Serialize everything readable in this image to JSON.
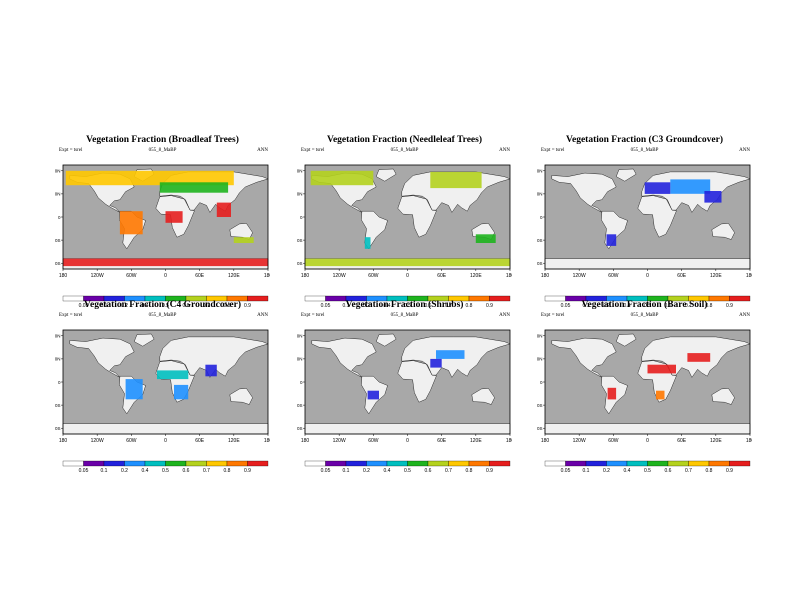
{
  "lon_ticks": [
    "180",
    "120W",
    "60W",
    "0",
    "60E",
    "120E",
    "180"
  ],
  "lat_ticks": [
    "80N",
    "40N",
    "0",
    "40S",
    "80S"
  ],
  "colorbar": {
    "labels": [
      "0.05",
      "0.1",
      "0.2",
      "0.4",
      "0.5",
      "0.6",
      "0.7",
      "0.8",
      "0.9"
    ],
    "colors": [
      "#ffffff",
      "#6a00a8",
      "#2222dd",
      "#1e90ff",
      "#00bfbf",
      "#1eb41e",
      "#b4d21e",
      "#ffc800",
      "#ff7800",
      "#e61e1e"
    ]
  },
  "colors": {
    "ocean": "#a8a8a8",
    "land": "#f0f0f0"
  },
  "panels": [
    {
      "title": "Vegetation Fraction (Broadleaf Trees)",
      "expt": "Expt = tsrel",
      "case": "055_8_MaBP",
      "season": "ANN"
    },
    {
      "title": "Vegetation Fraction (Needleleaf Trees)",
      "expt": "Expt = tsrel",
      "case": "055_8_MaBP",
      "season": "ANN"
    },
    {
      "title": "Vegetation Fraction (C3 Groundcover)",
      "expt": "Expt = tsrel",
      "case": "055_8_MaBP",
      "season": "ANN"
    },
    {
      "title": "Vegetation Fraction (C4 Groundcover)",
      "expt": "Expt = tsrel",
      "case": "055_8_MaBP",
      "season": "ANN"
    },
    {
      "title": "Vegetation Fraction (Shrubs)",
      "expt": "Expt = tsrel",
      "case": "055_8_MaBP",
      "season": "ANN"
    },
    {
      "title": "Vegetation Fraction (Bare Soil)",
      "expt": "Expt = tsrel",
      "case": "055_8_MaBP",
      "season": "ANN"
    }
  ],
  "chart_data": [
    {
      "type": "heatmap",
      "title": "Vegetation Fraction (Broadleaf Trees)",
      "subtitle": "055_8_MaBP",
      "xlabel": "",
      "ylabel": "",
      "x_ticks": [
        "180",
        "120W",
        "60W",
        "0",
        "60E",
        "120E",
        "180"
      ],
      "y_ticks": [
        "80N",
        "40N",
        "0",
        "40S",
        "80S"
      ],
      "color_levels": [
        0.05,
        0.1,
        0.2,
        0.4,
        0.5,
        0.6,
        0.7,
        0.8,
        0.9
      ],
      "regions": [
        {
          "name": "high-latitude northern band",
          "lon": [
            -175,
            120
          ],
          "lat": [
            55,
            80
          ],
          "value": 0.7
        },
        {
          "name": "central Eurasian band",
          "lon": [
            -10,
            110
          ],
          "lat": [
            42,
            60
          ],
          "value": 0.5
        },
        {
          "name": "South America tropics",
          "lon": [
            -80,
            -40
          ],
          "lat": [
            -30,
            10
          ],
          "value": 0.8
        },
        {
          "name": "Central Africa",
          "lon": [
            0,
            30
          ],
          "lat": [
            -10,
            10
          ],
          "value": 0.9
        },
        {
          "name": "Southeast Asia",
          "lon": [
            90,
            115
          ],
          "lat": [
            0,
            25
          ],
          "value": 0.9
        },
        {
          "name": "Antarctica coast",
          "lon": [
            -180,
            180
          ],
          "lat": [
            -85,
            -72
          ],
          "value": 0.9
        },
        {
          "name": "southern Australia",
          "lon": [
            120,
            155
          ],
          "lat": [
            -45,
            -35
          ],
          "value": 0.6
        }
      ]
    },
    {
      "type": "heatmap",
      "title": "Vegetation Fraction (Needleleaf Trees)",
      "subtitle": "055_8_MaBP",
      "xlabel": "",
      "ylabel": "",
      "x_ticks": [
        "180",
        "120W",
        "60W",
        "0",
        "60E",
        "120E",
        "180"
      ],
      "y_ticks": [
        "80N",
        "40N",
        "0",
        "40S",
        "80S"
      ],
      "color_levels": [
        0.05,
        0.1,
        0.2,
        0.4,
        0.5,
        0.6,
        0.7,
        0.8,
        0.9
      ],
      "regions": [
        {
          "name": "North America boreal",
          "lon": [
            -170,
            -60
          ],
          "lat": [
            55,
            80
          ],
          "value": 0.6
        },
        {
          "name": "Eurasia boreal",
          "lon": [
            40,
            130
          ],
          "lat": [
            50,
            78
          ],
          "value": 0.6
        },
        {
          "name": "southern South America",
          "lon": [
            -75,
            -65
          ],
          "lat": [
            -55,
            -35
          ],
          "value": 0.4
        },
        {
          "name": "Australia east",
          "lon": [
            120,
            155
          ],
          "lat": [
            -45,
            -30
          ],
          "value": 0.5
        },
        {
          "name": "Antarctica coast",
          "lon": [
            -180,
            180
          ],
          "lat": [
            -85,
            -72
          ],
          "value": 0.6
        }
      ]
    },
    {
      "type": "heatmap",
      "title": "Vegetation Fraction (C3 Groundcover)",
      "subtitle": "055_8_MaBP",
      "xlabel": "",
      "ylabel": "",
      "x_ticks": [
        "180",
        "120W",
        "60W",
        "0",
        "60E",
        "120E",
        "180"
      ],
      "y_ticks": [
        "80N",
        "40N",
        "0",
        "40S",
        "80S"
      ],
      "color_levels": [
        0.05,
        0.1,
        0.2,
        0.4,
        0.5,
        0.6,
        0.7,
        0.8,
        0.9
      ],
      "regions": [
        {
          "name": "Central Asia",
          "lon": [
            40,
            110
          ],
          "lat": [
            40,
            65
          ],
          "value": 0.2
        },
        {
          "name": "Europe",
          "lon": [
            -5,
            40
          ],
          "lat": [
            40,
            60
          ],
          "value": 0.1
        },
        {
          "name": "southern South America",
          "lon": [
            -72,
            -55
          ],
          "lat": [
            -50,
            -30
          ],
          "value": 0.1
        },
        {
          "name": "East Asia",
          "lon": [
            100,
            130
          ],
          "lat": [
            25,
            45
          ],
          "value": 0.1
        }
      ]
    },
    {
      "type": "heatmap",
      "title": "Vegetation Fraction (C4 Groundcover)",
      "subtitle": "055_8_MaBP",
      "xlabel": "",
      "ylabel": "",
      "x_ticks": [
        "180",
        "120W",
        "60W",
        "0",
        "60E",
        "120E",
        "180"
      ],
      "y_ticks": [
        "80N",
        "40N",
        "0",
        "40S",
        "80S"
      ],
      "color_levels": [
        0.05,
        0.1,
        0.2,
        0.4,
        0.5,
        0.6,
        0.7,
        0.8,
        0.9
      ],
      "regions": [
        {
          "name": "Sahel",
          "lon": [
            -15,
            40
          ],
          "lat": [
            5,
            20
          ],
          "value": 0.4
        },
        {
          "name": "southern Africa",
          "lon": [
            15,
            40
          ],
          "lat": [
            -30,
            -5
          ],
          "value": 0.2
        },
        {
          "name": "South America",
          "lon": [
            -70,
            -40
          ],
          "lat": [
            -30,
            5
          ],
          "value": 0.3
        },
        {
          "name": "India",
          "lon": [
            70,
            90
          ],
          "lat": [
            10,
            30
          ],
          "value": 0.1
        }
      ]
    },
    {
      "type": "heatmap",
      "title": "Vegetation Fraction (Shrubs)",
      "subtitle": "055_8_MaBP",
      "xlabel": "",
      "ylabel": "",
      "x_ticks": [
        "180",
        "120W",
        "60W",
        "0",
        "60E",
        "120E",
        "180"
      ],
      "y_ticks": [
        "80N",
        "40N",
        "0",
        "40S",
        "80S"
      ],
      "color_levels": [
        0.05,
        0.1,
        0.2,
        0.4,
        0.5,
        0.6,
        0.7,
        0.8,
        0.9
      ],
      "regions": [
        {
          "name": "Central Asia",
          "lon": [
            50,
            100
          ],
          "lat": [
            40,
            55
          ],
          "value": 0.3
        },
        {
          "name": "Middle East",
          "lon": [
            40,
            60
          ],
          "lat": [
            25,
            40
          ],
          "value": 0.1
        },
        {
          "name": "South America",
          "lon": [
            -70,
            -50
          ],
          "lat": [
            -30,
            -15
          ],
          "value": 0.1
        }
      ]
    },
    {
      "type": "heatmap",
      "title": "Vegetation Fraction (Bare Soil)",
      "subtitle": "055_8_MaBP",
      "xlabel": "",
      "ylabel": "",
      "x_ticks": [
        "180",
        "120W",
        "60W",
        "0",
        "60E",
        "120E",
        "180"
      ],
      "y_ticks": [
        "80N",
        "40N",
        "0",
        "40S",
        "80S"
      ],
      "color_levels": [
        0.05,
        0.1,
        0.2,
        0.4,
        0.5,
        0.6,
        0.7,
        0.8,
        0.9
      ],
      "regions": [
        {
          "name": "Sahara / Arabia",
          "lon": [
            0,
            50
          ],
          "lat": [
            15,
            30
          ],
          "value": 0.9
        },
        {
          "name": "Central Asia deserts",
          "lon": [
            70,
            110
          ],
          "lat": [
            35,
            50
          ],
          "value": 0.9
        },
        {
          "name": "southern Africa",
          "lon": [
            15,
            30
          ],
          "lat": [
            -30,
            -15
          ],
          "value": 0.8
        },
        {
          "name": "South America",
          "lon": [
            -70,
            -55
          ],
          "lat": [
            -30,
            -10
          ],
          "value": 0.9
        }
      ]
    }
  ]
}
